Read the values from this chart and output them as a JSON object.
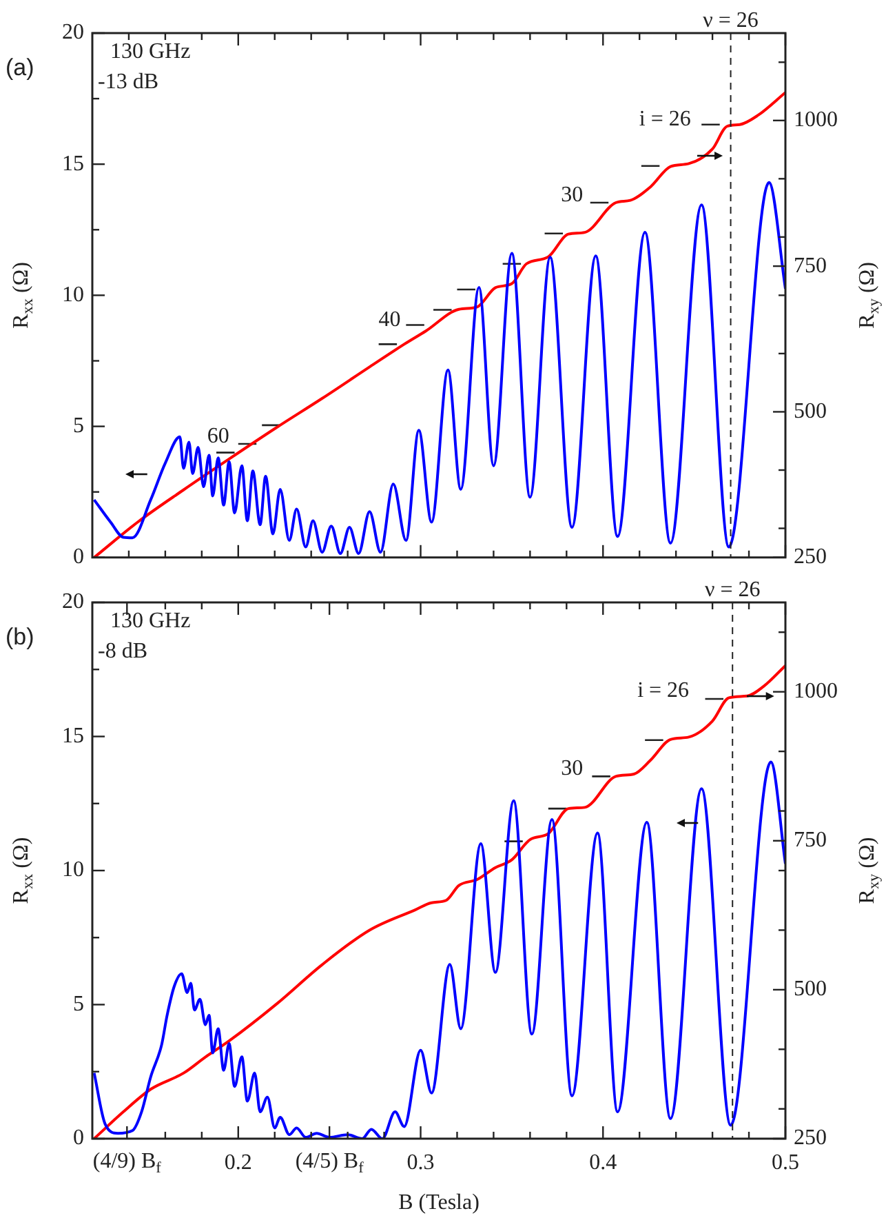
{
  "chart_data": [
    {
      "type": "line",
      "title": "(a)",
      "annotations": [
        "130 GHz",
        "-13 dB",
        "60",
        "40",
        "30",
        "i = 26",
        "ν = 26"
      ],
      "ylabel": "R$_{xx}$ (Ω)",
      "y2label": "R$_{xy}$ (Ω)",
      "xlim": [
        0.12,
        0.5
      ],
      "xticks": [
        {
          "value": 0.14,
          "label": null
        },
        {
          "value": 0.16,
          "label": null
        },
        {
          "value": 0.18,
          "label": null
        },
        0.2,
        {
          "value": 0.22,
          "label": null
        },
        {
          "value": 0.24,
          "label": null
        },
        {
          "value": 0.26,
          "label": null
        },
        {
          "value": 0.28,
          "label": null
        },
        0.3,
        {
          "value": 0.32,
          "label": null
        },
        {
          "value": 0.34,
          "label": null
        },
        {
          "value": 0.36,
          "label": null
        },
        {
          "value": 0.38,
          "label": null
        },
        0.4,
        {
          "value": 0.42,
          "label": null
        },
        {
          "value": 0.44,
          "label": null
        },
        {
          "value": 0.46,
          "label": null
        },
        {
          "value": 0.48,
          "label": null
        },
        0.5
      ],
      "ylim": [
        0,
        20
      ],
      "yticks": [
        0,
        {
          "value": 2.5,
          "label": null
        },
        5,
        {
          "value": 7.5,
          "label": null
        },
        10,
        {
          "value": 12.5,
          "label": null
        },
        15,
        {
          "value": 17.5,
          "label": null
        },
        20
      ],
      "y2lim": [
        250,
        1150
      ],
      "y2ticks": [
        250,
        {
          "value": 300,
          "label": null
        },
        {
          "value": 400,
          "label": null
        },
        500,
        {
          "value": 600,
          "label": null
        },
        {
          "value": 700,
          "label": null
        },
        750,
        {
          "value": 800,
          "label": null
        },
        {
          "value": 900,
          "label": null
        },
        1000,
        {
          "value": 1100,
          "label": null
        }
      ],
      "tick_labels": "y",
      "ref_lines": [
        {
          "axis": "x",
          "value": 0.47,
          "color": "#222222",
          "line_style": "dashed"
        }
      ],
      "series": [
        {
          "type": "line",
          "color": "#0000ff",
          "x": [
            0.121,
            0.13,
            0.137,
            0.142,
            0.152,
            0.16,
            0.168,
            0.17,
            0.173,
            0.175,
            0.178,
            0.181,
            0.184,
            0.186,
            0.189,
            0.192,
            0.195,
            0.198,
            0.202,
            0.205,
            0.208,
            0.212,
            0.215,
            0.219,
            0.223,
            0.228,
            0.232,
            0.237,
            0.241,
            0.246,
            0.251,
            0.256,
            0.261,
            0.266,
            0.272,
            0.278,
            0.285,
            0.292,
            0.299,
            0.306,
            0.315,
            0.322,
            0.332,
            0.34,
            0.35,
            0.36,
            0.371,
            0.383,
            0.396,
            0.408,
            0.423,
            0.437,
            0.454,
            0.469,
            0.491,
            0.5
          ],
          "values": [
            2.2,
            1.35,
            0.77,
            0.75,
            2.2,
            3.6,
            4.6,
            3.4,
            4.4,
            3.2,
            4.2,
            2.7,
            3.9,
            2.35,
            3.8,
            2.0,
            3.65,
            1.7,
            3.5,
            1.4,
            3.3,
            1.25,
            3.1,
            0.9,
            2.6,
            0.65,
            1.85,
            0.4,
            1.4,
            0.2,
            1.2,
            0.15,
            1.15,
            0.15,
            1.75,
            0.2,
            2.8,
            0.65,
            4.85,
            1.35,
            7.15,
            2.6,
            10.3,
            3.5,
            11.6,
            2.3,
            11.45,
            1.15,
            11.5,
            0.8,
            12.4,
            0.55,
            13.45,
            0.4,
            14.3,
            10.25
          ]
        },
        {
          "type": "line",
          "color": "#ff0000",
          "axis": "y2",
          "x": [
            0.121,
            0.145,
            0.17,
            0.195,
            0.221,
            0.246,
            0.272,
            0.291,
            0.303,
            0.321,
            0.331,
            0.341,
            0.35,
            0.358,
            0.37,
            0.381,
            0.39,
            0.407,
            0.415,
            0.426,
            0.437,
            0.447,
            0.46,
            0.468,
            0.475,
            0.485,
            0.5
          ],
          "values": [
            250,
            311,
            366,
            419,
            473,
            523,
            577,
            616,
            639,
            676,
            680,
            713,
            720,
            754,
            766,
            805,
            808,
            859,
            863,
            886,
            921,
            926,
            951,
            990,
            993,
            1009,
            1048
          ]
        },
        {
          "type": "line",
          "color": "#222222",
          "axis": "y2",
          "x": [
            0.188,
            0.198,
            0.199,
            0.2,
            0.21,
            0.2115,
            0.213,
            0.223,
            0.25,
            0.277,
            0.287,
            0.2895,
            0.292,
            0.302,
            0.3045,
            0.307,
            0.317,
            0.3185,
            0.32,
            0.33,
            0.3375,
            0.345,
            0.355,
            0.3615,
            0.368,
            0.378,
            0.3855,
            0.393,
            0.403,
            0.412,
            0.421,
            0.431,
            0.4425,
            0.454,
            0.464
          ],
          "values": [
            430,
            430,
            null,
            445,
            445,
            null,
            477,
            477,
            null,
            616,
            616,
            null,
            649,
            649,
            null,
            675,
            675,
            null,
            710,
            710,
            null,
            754,
            754,
            null,
            806,
            806,
            null,
            859,
            859,
            null,
            922,
            922,
            null,
            993,
            993
          ]
        }
      ]
    },
    {
      "type": "line",
      "title": "(b)",
      "annotations": [
        "130 GHz",
        "-8 dB",
        "30",
        "i = 26",
        "ν = 26"
      ],
      "xlabel": "B (Tesla)",
      "ylabel": "R$_{xx}$ (Ω)",
      "y2label": "R$_{xy}$ (Ω)",
      "xlim": [
        0.12,
        0.5
      ],
      "xticks": [
        {
          "value": 0.139,
          "label": "(4/9) B$_{f}$"
        },
        {
          "value": 0.16,
          "label": null
        },
        {
          "value": 0.18,
          "label": null
        },
        0.2,
        {
          "value": 0.22,
          "label": null
        },
        {
          "value": 0.24,
          "label": null
        },
        {
          "value": 0.25,
          "label": "(4/5) B$_{f}$"
        },
        {
          "value": 0.26,
          "label": null
        },
        {
          "value": 0.28,
          "label": null
        },
        0.3,
        {
          "value": 0.32,
          "label": null
        },
        {
          "value": 0.34,
          "label": null
        },
        {
          "value": 0.36,
          "label": null
        },
        {
          "value": 0.38,
          "label": null
        },
        0.4,
        {
          "value": 0.42,
          "label": null
        },
        {
          "value": 0.44,
          "label": null
        },
        {
          "value": 0.46,
          "label": null
        },
        {
          "value": 0.48,
          "label": null
        },
        0.5
      ],
      "ylim": [
        0,
        20
      ],
      "yticks": [
        0,
        {
          "value": 2.5,
          "label": null
        },
        5,
        {
          "value": 7.5,
          "label": null
        },
        10,
        {
          "value": 12.5,
          "label": null
        },
        15,
        {
          "value": 17.5,
          "label": null
        },
        20
      ],
      "y2lim": [
        250,
        1150
      ],
      "y2ticks": [
        250,
        {
          "value": 300,
          "label": null
        },
        {
          "value": 400,
          "label": null
        },
        500,
        {
          "value": 600,
          "label": null
        },
        {
          "value": 700,
          "label": null
        },
        750,
        {
          "value": 800,
          "label": null
        },
        {
          "value": 900,
          "label": null
        },
        1000,
        {
          "value": 1100,
          "label": null
        }
      ],
      "ref_lines": [
        {
          "axis": "x",
          "value": 0.471,
          "color": "#222222",
          "line_style": "dashed"
        }
      ],
      "series": [
        {
          "type": "line",
          "color": "#0000ff",
          "x": [
            0.121,
            0.127,
            0.134,
            0.142,
            0.147,
            0.152,
            0.158,
            0.161,
            0.165,
            0.169,
            0.172,
            0.174,
            0.176,
            0.179,
            0.182,
            0.184,
            0.186,
            0.189,
            0.192,
            0.195,
            0.198,
            0.202,
            0.205,
            0.209,
            0.212,
            0.216,
            0.22,
            0.223,
            0.228,
            0.232,
            0.237,
            0.243,
            0.25,
            0.26,
            0.268,
            0.273,
            0.279,
            0.286,
            0.291,
            0.3,
            0.306,
            0.316,
            0.322,
            0.333,
            0.341,
            0.351,
            0.361,
            0.372,
            0.383,
            0.397,
            0.408,
            0.424,
            0.437,
            0.454,
            0.47,
            0.492,
            0.5
          ],
          "values": [
            2.45,
            0.55,
            0.2,
            0.3,
            1.0,
            2.3,
            3.5,
            4.6,
            5.7,
            6.15,
            5.45,
            5.8,
            4.8,
            5.2,
            4.25,
            4.6,
            3.2,
            4.1,
            2.55,
            3.55,
            1.95,
            3.05,
            1.4,
            2.45,
            1.0,
            1.55,
            0.4,
            0.8,
            0.15,
            0.4,
            0.05,
            0.2,
            0.05,
            0.15,
            0,
            0.35,
            0,
            1.0,
            0.45,
            3.3,
            1.7,
            6.5,
            4.1,
            11.0,
            6.2,
            12.6,
            3.9,
            11.9,
            1.6,
            11.4,
            1.0,
            11.8,
            0.75,
            13.05,
            0.5,
            14.05,
            10.25
          ]
        },
        {
          "type": "line",
          "color": "#ff0000",
          "axis": "y2",
          "x": [
            0.121,
            0.137,
            0.152,
            0.17,
            0.182,
            0.195,
            0.221,
            0.246,
            0.272,
            0.297,
            0.306,
            0.314,
            0.321,
            0.331,
            0.341,
            0.35,
            0.36,
            0.37,
            0.381,
            0.39,
            0.407,
            0.417,
            0.426,
            0.437,
            0.447,
            0.46,
            0.469,
            0.479,
            0.488,
            0.5
          ],
          "values": [
            250,
            295,
            333,
            360,
            387,
            414,
            476,
            542,
            600,
            634,
            646,
            650,
            675,
            685,
            705,
            718,
            752,
            762,
            804,
            806,
            858,
            862,
            885,
            920,
            924,
            951,
            990,
            993,
            1009,
            1044
          ]
        },
        {
          "type": "line",
          "color": "#222222",
          "axis": "y2",
          "x": [
            0.346,
            0.356,
            0.363,
            0.37,
            0.38,
            0.387,
            0.394,
            0.404,
            0.4135,
            0.423,
            0.433,
            0.4445,
            0.456,
            0.466
          ],
          "values": [
            749,
            749,
            null,
            804,
            804,
            null,
            858,
            858,
            null,
            919,
            919,
            null,
            988,
            988
          ]
        }
      ]
    }
  ]
}
